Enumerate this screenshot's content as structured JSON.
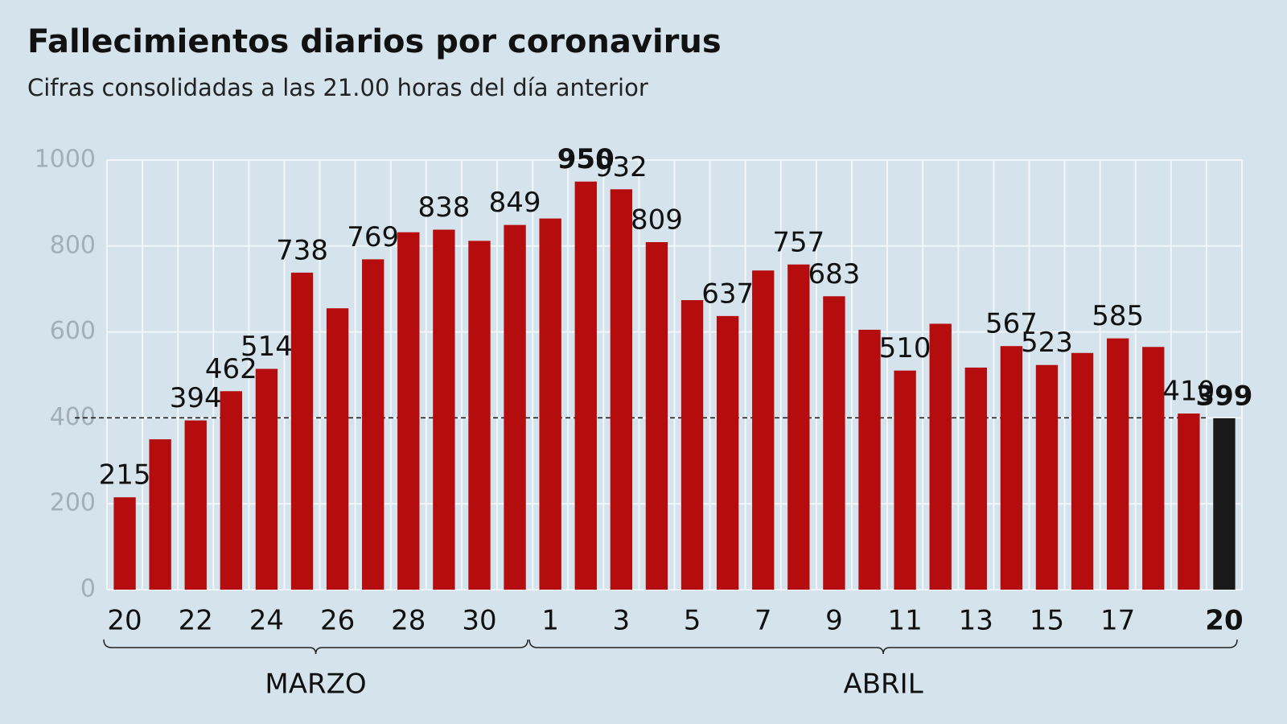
{
  "chart_data": {
    "type": "bar",
    "title": "Fallecimientos diarios por coronavirus",
    "subtitle": "Cifras consolidadas a las 21.00 horas del día anterior",
    "categories": [
      "20",
      null,
      "22",
      null,
      "24",
      null,
      "26",
      null,
      "28",
      null,
      "30",
      null,
      "1",
      null,
      "3",
      null,
      "5",
      null,
      "7",
      null,
      "9",
      null,
      "11",
      null,
      "13",
      null,
      "15",
      null,
      "17",
      null,
      null,
      "20"
    ],
    "values": [
      215,
      350,
      394,
      462,
      514,
      738,
      655,
      769,
      832,
      838,
      812,
      849,
      864,
      950,
      932,
      809,
      674,
      637,
      743,
      757,
      683,
      605,
      510,
      619,
      517,
      567,
      523,
      551,
      585,
      565,
      410,
      399
    ],
    "value_labels": [
      "215",
      null,
      "394",
      "462",
      "514",
      "738",
      null,
      "769",
      null,
      "838",
      null,
      "849",
      null,
      "950",
      "932",
      "809",
      null,
      "637",
      null,
      "757",
      "683",
      null,
      "510",
      null,
      null,
      "567",
      "523",
      null,
      "585",
      null,
      "410",
      "399"
    ],
    "colors": [
      "#b50d0d",
      "#b50d0d",
      "#b50d0d",
      "#b50d0d",
      "#b50d0d",
      "#b50d0d",
      "#b50d0d",
      "#b50d0d",
      "#b50d0d",
      "#b50d0d",
      "#b50d0d",
      "#b50d0d",
      "#b50d0d",
      "#b50d0d",
      "#b50d0d",
      "#b50d0d",
      "#b50d0d",
      "#b50d0d",
      "#b50d0d",
      "#b50d0d",
      "#b50d0d",
      "#b50d0d",
      "#b50d0d",
      "#b50d0d",
      "#b50d0d",
      "#b50d0d",
      "#b50d0d",
      "#b50d0d",
      "#b50d0d",
      "#b50d0d",
      "#b50d0d",
      "#1a1a1a"
    ],
    "groups": [
      {
        "label": "MARZO",
        "count": 12
      },
      {
        "label": "ABRIL",
        "count": 20
      }
    ],
    "reference_line": 400,
    "ylim": [
      0,
      1000
    ],
    "yticks": [
      0,
      200,
      400,
      600,
      800,
      1000
    ],
    "grid": true
  }
}
